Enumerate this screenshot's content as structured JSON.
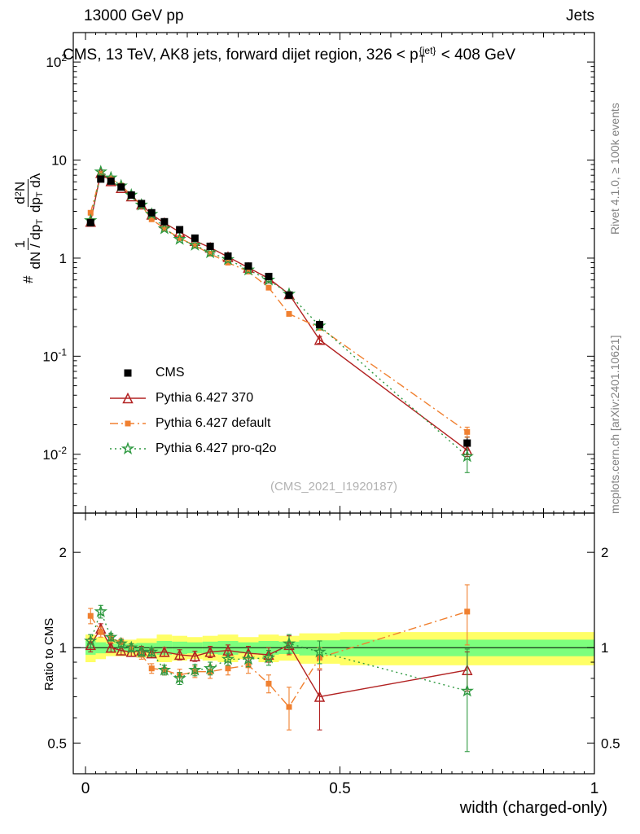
{
  "header": {
    "left": "13000 GeV pp",
    "right": "Jets"
  },
  "title": {
    "pre": "CMS, 13 TeV, AK8 jets, forward dijet region, 326 < p",
    "sup": "{jet}",
    "sub": "T",
    "post": " < 408 GeV"
  },
  "watermark": "(CMS_2021_I1920187)",
  "side_notes": {
    "top": "Rivet 4.1.0, ≥ 100k events",
    "bottom": "mcplots.cern.ch [arXiv:2401.10621]"
  },
  "ylabel": {
    "hash": "#",
    "frac1_num": "1",
    "frac1_den_pre": "dN / dp",
    "frac1_den_sub": "T",
    "frac2_num_pre": "d",
    "frac2_num_sup": "2",
    "frac2_num_post": "N",
    "frac2_den_pre": "dp",
    "frac2_den_sub": "T",
    "frac2_den_post": " dλ"
  },
  "ratio_label": "Ratio to CMS",
  "xlabel": "width (charged-only)",
  "chart_data": {
    "type": "line",
    "title": "CMS, 13 TeV, AK8 jets, forward dijet region, 326 < pT^{jet} < 408 GeV",
    "xlabel": "width (charged-only)",
    "ylabel": "# 1/(dN/dpT) d2N/(dpT dlambda)",
    "ratio_ylabel": "Ratio to CMS",
    "x_axis": {
      "min": -0.024,
      "max": 1.0,
      "ticks": [
        {
          "v": 0,
          "label": "0"
        },
        {
          "v": 0.5,
          "label": "0.5"
        },
        {
          "v": 1,
          "label": "1"
        }
      ]
    },
    "y_axis": {
      "log_min": -2.6,
      "log_max": 2.3,
      "ticks": [
        {
          "v": 100,
          "base": "10",
          "exp": "2"
        },
        {
          "v": 10,
          "base": "10",
          "exp": ""
        },
        {
          "v": 1,
          "base": "1",
          "exp": ""
        },
        {
          "v": 0.1,
          "base": "10",
          "exp": "-1"
        },
        {
          "v": 0.01,
          "base": "10",
          "exp": "-2"
        }
      ]
    },
    "ratio_axis": {
      "min": 0.4,
      "max": 2.66,
      "ticks": [
        {
          "v": 2,
          "label": "2"
        },
        {
          "v": 1,
          "label": "1"
        },
        {
          "v": 0.5,
          "label": "0.5"
        }
      ],
      "minor": [
        0.6,
        0.7,
        0.8,
        0.9
      ]
    },
    "x": [
      0.01,
      0.03,
      0.05,
      0.07,
      0.09,
      0.11,
      0.13,
      0.155,
      0.185,
      0.215,
      0.245,
      0.28,
      0.32,
      0.36,
      0.4,
      0.46,
      0.75
    ],
    "series": [
      {
        "name": "CMS",
        "color": "#000000",
        "marker": "square",
        "marker_size": 9,
        "line": "none",
        "values": [
          2.3,
          6.4,
          6.1,
          5.3,
          4.4,
          3.6,
          2.9,
          2.35,
          1.95,
          1.6,
          1.32,
          1.05,
          0.83,
          0.65,
          0.42,
          0.21,
          0.013
        ],
        "errors": [
          0.12,
          0.25,
          0.22,
          0.18,
          0.15,
          0.12,
          0.1,
          0.08,
          0.07,
          0.06,
          0.05,
          0.04,
          0.03,
          0.025,
          0.02,
          0.012,
          0.002
        ]
      },
      {
        "name": "Pythia 6.427 370",
        "color": "#b22222",
        "marker": "triangle",
        "marker_size": 11,
        "line": "solid",
        "values": [
          2.35,
          7.4,
          6.1,
          5.2,
          4.27,
          3.53,
          2.78,
          2.28,
          1.85,
          1.5,
          1.28,
          1.03,
          0.8,
          0.62,
          0.43,
          0.147,
          0.011
        ],
        "errors": [
          0.06,
          0.1,
          0.08,
          0.07,
          0.06,
          0.05,
          0.05,
          0.04,
          0.04,
          0.03,
          0.03,
          0.025,
          0.02,
          0.02,
          0.015,
          0.012,
          0.0015
        ],
        "ratio": [
          1.02,
          1.15,
          1.0,
          0.98,
          0.97,
          0.98,
          0.96,
          0.97,
          0.95,
          0.94,
          0.97,
          0.98,
          0.96,
          0.95,
          1.02,
          0.7,
          0.85
        ],
        "ratio_errors": [
          0.05,
          0.04,
          0.03,
          0.03,
          0.03,
          0.03,
          0.03,
          0.03,
          0.035,
          0.035,
          0.04,
          0.04,
          0.05,
          0.05,
          0.07,
          0.15,
          0.12
        ]
      },
      {
        "name": "Pythia 6.427 default",
        "color": "#f08030",
        "marker": "square",
        "marker_size": 7,
        "line": "dashdot",
        "values": [
          2.9,
          7.2,
          6.5,
          5.5,
          4.4,
          3.42,
          2.49,
          2.0,
          1.6,
          1.34,
          1.11,
          0.9,
          0.73,
          0.5,
          0.27,
          0.195,
          0.0169
        ],
        "errors": [
          0.07,
          0.1,
          0.08,
          0.07,
          0.06,
          0.05,
          0.04,
          0.04,
          0.03,
          0.03,
          0.025,
          0.02,
          0.02,
          0.015,
          0.012,
          0.01,
          0.002
        ],
        "ratio": [
          1.26,
          1.12,
          1.07,
          1.04,
          1.0,
          0.95,
          0.86,
          0.85,
          0.82,
          0.84,
          0.84,
          0.86,
          0.88,
          0.77,
          0.65,
          0.93,
          1.3
        ],
        "ratio_errors": [
          0.07,
          0.04,
          0.03,
          0.03,
          0.03,
          0.03,
          0.03,
          0.03,
          0.035,
          0.035,
          0.04,
          0.04,
          0.05,
          0.05,
          0.1,
          0.07,
          0.28
        ]
      },
      {
        "name": "Pythia 6.427 pro-q2o",
        "color": "#2e9940",
        "marker": "star",
        "marker_size": 13,
        "line": "dotted",
        "values": [
          2.42,
          7.6,
          6.6,
          5.46,
          4.4,
          3.49,
          2.81,
          2.0,
          1.56,
          1.36,
          1.14,
          0.97,
          0.76,
          0.6,
          0.43,
          0.204,
          0.0095
        ],
        "errors": [
          0.06,
          0.1,
          0.08,
          0.07,
          0.06,
          0.05,
          0.05,
          0.04,
          0.04,
          0.03,
          0.03,
          0.025,
          0.02,
          0.02,
          0.015,
          0.012,
          0.003
        ],
        "ratio": [
          1.05,
          1.3,
          1.08,
          1.03,
          1.0,
          0.97,
          0.97,
          0.85,
          0.8,
          0.85,
          0.86,
          0.92,
          0.92,
          0.93,
          1.03,
          0.97,
          0.73
        ],
        "ratio_errors": [
          0.05,
          0.06,
          0.03,
          0.03,
          0.03,
          0.03,
          0.03,
          0.03,
          0.035,
          0.035,
          0.04,
          0.04,
          0.05,
          0.05,
          0.07,
          0.08,
          0.26
        ]
      }
    ],
    "bands": {
      "edges": [
        0,
        0.02,
        0.04,
        0.06,
        0.08,
        0.1,
        0.12,
        0.14,
        0.17,
        0.2,
        0.23,
        0.26,
        0.3,
        0.34,
        0.38,
        0.42,
        0.5,
        1.0
      ],
      "yellow_hw": [
        0.1,
        0.08,
        0.06,
        0.06,
        0.06,
        0.07,
        0.07,
        0.1,
        0.09,
        0.08,
        0.09,
        0.1,
        0.08,
        0.1,
        0.09,
        0.11,
        0.12
      ],
      "green_hw": [
        0.05,
        0.04,
        0.03,
        0.03,
        0.03,
        0.035,
        0.035,
        0.05,
        0.045,
        0.04,
        0.045,
        0.05,
        0.04,
        0.05,
        0.045,
        0.055,
        0.06
      ],
      "yellow_color": "#ffff66",
      "green_color": "#7dff7d"
    },
    "legend_position": "middle-left",
    "grid": false
  }
}
